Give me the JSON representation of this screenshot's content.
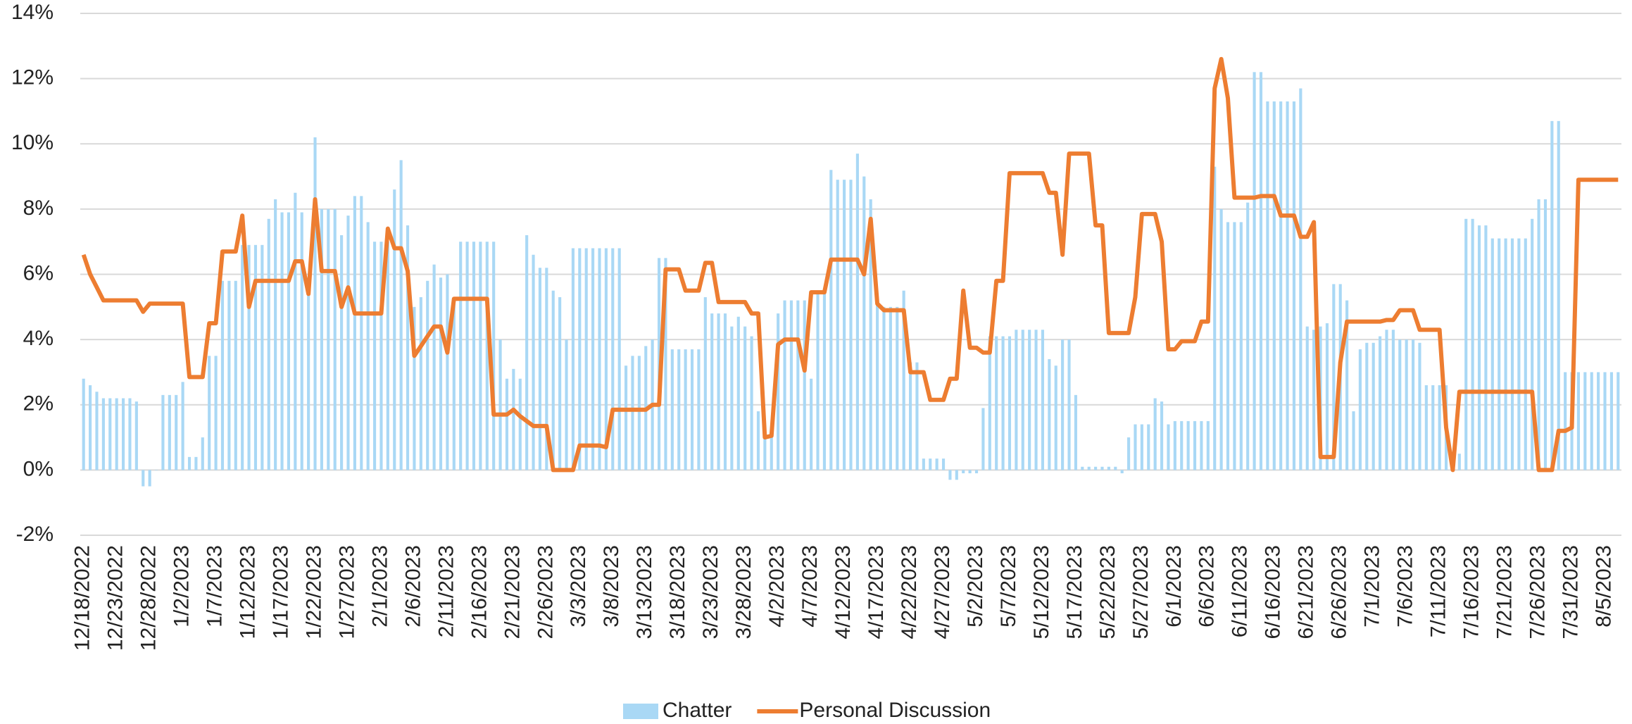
{
  "chart_data": {
    "type": "bar-line",
    "categories": [
      "12/18/2022",
      null,
      null,
      null,
      null,
      "12/23/2022",
      null,
      null,
      null,
      null,
      "12/28/2022",
      null,
      null,
      null,
      null,
      "1/2/2023",
      null,
      null,
      null,
      null,
      "1/7/2023",
      null,
      null,
      null,
      null,
      "1/12/2023",
      null,
      null,
      null,
      null,
      "1/17/2023",
      null,
      null,
      null,
      null,
      "1/22/2023",
      null,
      null,
      null,
      null,
      "1/27/2023",
      null,
      null,
      null,
      null,
      "2/1/2023",
      null,
      null,
      null,
      null,
      "2/6/2023",
      null,
      null,
      null,
      null,
      "2/11/2023",
      null,
      null,
      null,
      null,
      "2/16/2023",
      null,
      null,
      null,
      null,
      "2/21/2023",
      null,
      null,
      null,
      null,
      "2/26/2023",
      null,
      null,
      null,
      null,
      "3/3/2023",
      null,
      null,
      null,
      null,
      "3/8/2023",
      null,
      null,
      null,
      null,
      "3/13/2023",
      null,
      null,
      null,
      null,
      "3/18/2023",
      null,
      null,
      null,
      null,
      "3/23/2023",
      null,
      null,
      null,
      null,
      "3/28/2023",
      null,
      null,
      null,
      null,
      "4/2/2023",
      null,
      null,
      null,
      null,
      "4/7/2023",
      null,
      null,
      null,
      null,
      "4/12/2023",
      null,
      null,
      null,
      null,
      "4/17/2023",
      null,
      null,
      null,
      null,
      "4/22/2023",
      null,
      null,
      null,
      null,
      "4/27/2023",
      null,
      null,
      null,
      null,
      "5/2/2023",
      null,
      null,
      null,
      null,
      "5/7/2023",
      null,
      null,
      null,
      null,
      "5/12/2023",
      null,
      null,
      null,
      null,
      "5/17/2023",
      null,
      null,
      null,
      null,
      "5/22/2023",
      null,
      null,
      null,
      null,
      "5/27/2023",
      null,
      null,
      null,
      null,
      "6/1/2023",
      null,
      null,
      null,
      null,
      "6/6/2023",
      null,
      null,
      null,
      null,
      "6/11/2023",
      null,
      null,
      null,
      null,
      "6/16/2023",
      null,
      null,
      null,
      null,
      "6/21/2023",
      null,
      null,
      null,
      null,
      "6/26/2023",
      null,
      null,
      null,
      null,
      "7/1/2023",
      null,
      null,
      null,
      null,
      "7/6/2023",
      null,
      null,
      null,
      null,
      "7/11/2023",
      null,
      null,
      null,
      null,
      "7/16/2023",
      null,
      null,
      null,
      null,
      "7/21/2023",
      null,
      null,
      null,
      null,
      "7/26/2023",
      null,
      null,
      null,
      null,
      "7/31/2023",
      null,
      null,
      null,
      null,
      "8/5/2023",
      null,
      null
    ],
    "series": [
      {
        "name": "Chatter",
        "kind": "bar",
        "color": "#a9d8f5",
        "values": [
          2.8,
          2.6,
          2.4,
          2.2,
          2.2,
          2.2,
          2.2,
          2.2,
          2.1,
          -0.5,
          -0.5,
          0,
          2.3,
          2.3,
          2.3,
          2.7,
          0.4,
          0.4,
          1.0,
          3.5,
          3.5,
          5.8,
          5.8,
          5.8,
          6.9,
          6.9,
          6.9,
          6.9,
          7.7,
          8.3,
          7.9,
          7.9,
          8.5,
          7.9,
          5.5,
          10.2,
          8.0,
          8.0,
          8.0,
          7.2,
          7.8,
          8.4,
          8.4,
          7.6,
          7.0,
          7.0,
          7.0,
          8.6,
          9.5,
          7.5,
          5.0,
          5.3,
          5.8,
          6.3,
          5.9,
          6.0,
          5.2,
          7.0,
          7.0,
          7.0,
          7.0,
          7.0,
          7.0,
          4.0,
          2.8,
          3.1,
          2.8,
          7.2,
          6.6,
          6.2,
          6.2,
          5.5,
          5.3,
          4.0,
          6.8,
          6.8,
          6.8,
          6.8,
          6.8,
          6.8,
          6.8,
          6.8,
          3.2,
          3.5,
          3.5,
          3.8,
          4.0,
          6.5,
          6.5,
          3.7,
          3.7,
          3.7,
          3.7,
          3.7,
          5.3,
          4.8,
          4.8,
          4.8,
          4.4,
          4.7,
          4.4,
          4.1,
          1.8,
          1.0,
          1.0,
          4.8,
          5.2,
          5.2,
          5.2,
          5.2,
          2.8,
          5.5,
          5.5,
          9.2,
          8.9,
          8.9,
          8.9,
          9.7,
          9.0,
          8.3,
          5.3,
          5.0,
          5.0,
          5.0,
          5.5,
          3.3,
          3.3,
          0.35,
          0.35,
          0.35,
          0.35,
          -0.3,
          -0.3,
          -0.1,
          -0.1,
          -0.1,
          1.9,
          4.1,
          4.1,
          4.1,
          4.1,
          4.3,
          4.3,
          4.3,
          4.3,
          4.3,
          3.4,
          3.2,
          4.0,
          4.0,
          2.3,
          0.1,
          0.1,
          0.1,
          0.1,
          0.1,
          0.1,
          -0.1,
          1.0,
          1.4,
          1.4,
          1.4,
          2.2,
          2.1,
          1.4,
          1.5,
          1.5,
          1.5,
          1.5,
          1.5,
          1.5,
          9.3,
          8.0,
          7.6,
          7.6,
          7.6,
          8.2,
          12.2,
          12.2,
          11.3,
          11.3,
          11.3,
          11.3,
          11.3,
          11.7,
          4.4,
          4.3,
          4.4,
          4.5,
          5.7,
          5.7,
          5.2,
          1.8,
          3.7,
          3.9,
          3.9,
          4.1,
          4.3,
          4.3,
          4.0,
          4.0,
          4.0,
          3.9,
          2.6,
          2.6,
          2.6,
          2.6,
          0.5,
          0.5,
          7.7,
          7.7,
          7.5,
          7.5,
          7.1,
          7.1,
          7.1,
          7.1,
          7.1,
          7.1,
          7.7,
          8.3,
          8.3,
          10.7,
          10.7,
          3.0,
          3.0,
          3.0,
          3.0,
          3.0,
          3.0,
          3.0,
          3.0,
          3.0
        ]
      },
      {
        "name": "Personal Discussion",
        "kind": "line",
        "color": "#ed7d31",
        "values": [
          6.6,
          6.0,
          5.6,
          5.2,
          5.2,
          5.2,
          5.2,
          5.2,
          5.2,
          4.85,
          5.1,
          5.1,
          5.1,
          5.1,
          5.1,
          5.1,
          2.85,
          2.85,
          2.85,
          4.5,
          4.5,
          6.7,
          6.7,
          6.7,
          7.8,
          5.0,
          5.8,
          5.8,
          5.8,
          5.8,
          5.8,
          5.8,
          6.4,
          6.4,
          5.4,
          8.3,
          6.1,
          6.1,
          6.1,
          5.0,
          5.6,
          4.8,
          4.8,
          4.8,
          4.8,
          4.8,
          7.4,
          6.8,
          6.8,
          6.1,
          3.5,
          3.8,
          4.1,
          4.4,
          4.4,
          3.6,
          5.25,
          5.25,
          5.25,
          5.25,
          5.25,
          5.25,
          1.7,
          1.7,
          1.7,
          1.85,
          1.65,
          1.5,
          1.35,
          1.35,
          1.35,
          0,
          0,
          0,
          0,
          0.75,
          0.75,
          0.75,
          0.75,
          0.7,
          1.85,
          1.85,
          1.85,
          1.85,
          1.85,
          1.85,
          2.0,
          2.0,
          6.15,
          6.15,
          6.15,
          5.5,
          5.5,
          5.5,
          6.35,
          6.35,
          5.15,
          5.15,
          5.15,
          5.15,
          5.15,
          4.8,
          4.8,
          1.0,
          1.05,
          3.85,
          4.0,
          4.0,
          4.0,
          3.05,
          5.45,
          5.45,
          5.45,
          6.45,
          6.45,
          6.45,
          6.45,
          6.45,
          6.0,
          7.7,
          5.1,
          4.9,
          4.9,
          4.9,
          4.9,
          3.0,
          3.0,
          3.0,
          2.15,
          2.15,
          2.15,
          2.8,
          2.8,
          5.5,
          3.75,
          3.75,
          3.6,
          3.6,
          5.8,
          5.8,
          9.1,
          9.1,
          9.1,
          9.1,
          9.1,
          9.1,
          8.5,
          8.5,
          6.6,
          9.7,
          9.7,
          9.7,
          9.7,
          7.5,
          7.5,
          4.2,
          4.2,
          4.2,
          4.2,
          5.3,
          7.85,
          7.85,
          7.85,
          7.0,
          3.7,
          3.7,
          3.95,
          3.95,
          3.95,
          4.55,
          4.55,
          11.7,
          12.6,
          11.4,
          8.35,
          8.35,
          8.35,
          8.35,
          8.4,
          8.4,
          8.4,
          7.8,
          7.8,
          7.8,
          7.15,
          7.15,
          7.6,
          0.4,
          0.4,
          0.4,
          3.3,
          4.55,
          4.55,
          4.55,
          4.55,
          4.55,
          4.55,
          4.6,
          4.6,
          4.9,
          4.9,
          4.9,
          4.3,
          4.3,
          4.3,
          4.3,
          1.3,
          0,
          2.4,
          2.4,
          2.4,
          2.4,
          2.4,
          2.4,
          2.4,
          2.4,
          2.4,
          2.4,
          2.4,
          2.4,
          0,
          0,
          0,
          1.2,
          1.2,
          1.3,
          8.9,
          8.9,
          8.9,
          8.9,
          8.9,
          8.9,
          8.9
        ]
      }
    ],
    "ylim": [
      -2,
      14
    ],
    "yticks": [
      {
        "value": -2,
        "label": "-2%"
      },
      {
        "value": 0,
        "label": "0%"
      },
      {
        "value": 2,
        "label": "2%"
      },
      {
        "value": 4,
        "label": "4%"
      },
      {
        "value": 6,
        "label": "6%"
      },
      {
        "value": 8,
        "label": "8%"
      },
      {
        "value": 10,
        "label": "10%"
      },
      {
        "value": 12,
        "label": "12%"
      },
      {
        "value": 14,
        "label": "14%"
      }
    ],
    "grid": true,
    "legend": "bottom"
  }
}
